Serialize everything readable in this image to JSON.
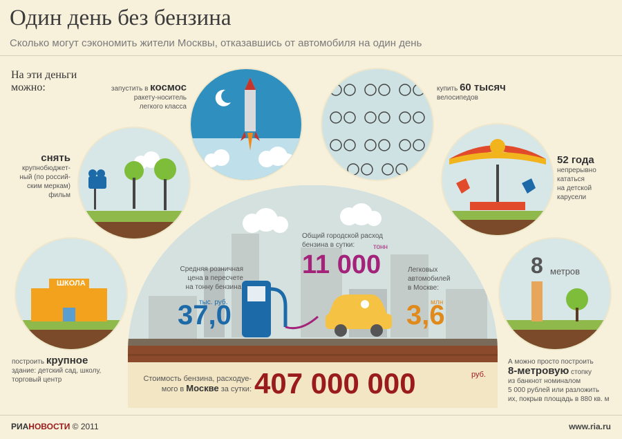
{
  "header": {
    "title": "Один день без бензина",
    "subtitle": "Сколько могут сэкономить жители Москвы, отказавшись от автомобиля на один день"
  },
  "intro": {
    "line1": "На эти деньги",
    "line2": "можно:"
  },
  "space": {
    "pre": "запустить в ",
    "bold": "космос",
    "desc1": "ракету-носитель",
    "desc2": "легкого класса"
  },
  "film": {
    "bold": "снять",
    "desc1": "крупнобюджет-",
    "desc2": "ный (по россий-",
    "desc3": "ским меркам)",
    "desc4": "фильм"
  },
  "school": {
    "sign": "ШКОЛА",
    "pre": "построить ",
    "bold": "крупное",
    "desc1": "здание: детский сад, школу,",
    "desc2": "торговый центр"
  },
  "bikes": {
    "pre": "купить ",
    "bold": "60 тысяч",
    "desc": "велосипедов"
  },
  "carousel": {
    "bold": "52 года",
    "desc1": "непрерывно",
    "desc2": "кататься",
    "desc3": "на детской",
    "desc4": "карусели"
  },
  "stack": {
    "num": "8",
    "unit": "метров",
    "l1pre": "А можно просто построить",
    "l2bold": "8-метровую",
    "l2post": " стопку",
    "l3": "из банкнот номиналом",
    "l4": "5 000 рублей или разложить",
    "l5": "их, покрыв площадь в 880 кв. м"
  },
  "price": {
    "l1": "Средняя розничная",
    "l2": "цена в пересчете",
    "l3": "на тонну бензина:",
    "unit": "тыс. руб.",
    "value": "37,0"
  },
  "consumption": {
    "l1": "Общий городской расход",
    "l2": "бензина в сутки:",
    "unit": "тонн",
    "value": "11 000"
  },
  "cars": {
    "l1": "Легковых",
    "l2": "автомобилей",
    "l3": "в Москве:",
    "unit": "млн",
    "value": "3,6"
  },
  "total": {
    "l1": "Стоимость бензина, расходуе-",
    "l2pre": "мого в ",
    "l2bold": "Москве",
    "l2post": " за сутки:",
    "value": "407 000 000",
    "unit": "руб."
  },
  "footer": {
    "ria": "РИА",
    "novosti": "НОВОСТИ",
    "copy": " © 2011",
    "site": "www.ria.ru"
  },
  "colors": {
    "background": "#f7f1dc",
    "red": "#9a1b1b",
    "blue": "#1c6aa8",
    "magenta": "#a3237a",
    "orange": "#e08a1c"
  }
}
